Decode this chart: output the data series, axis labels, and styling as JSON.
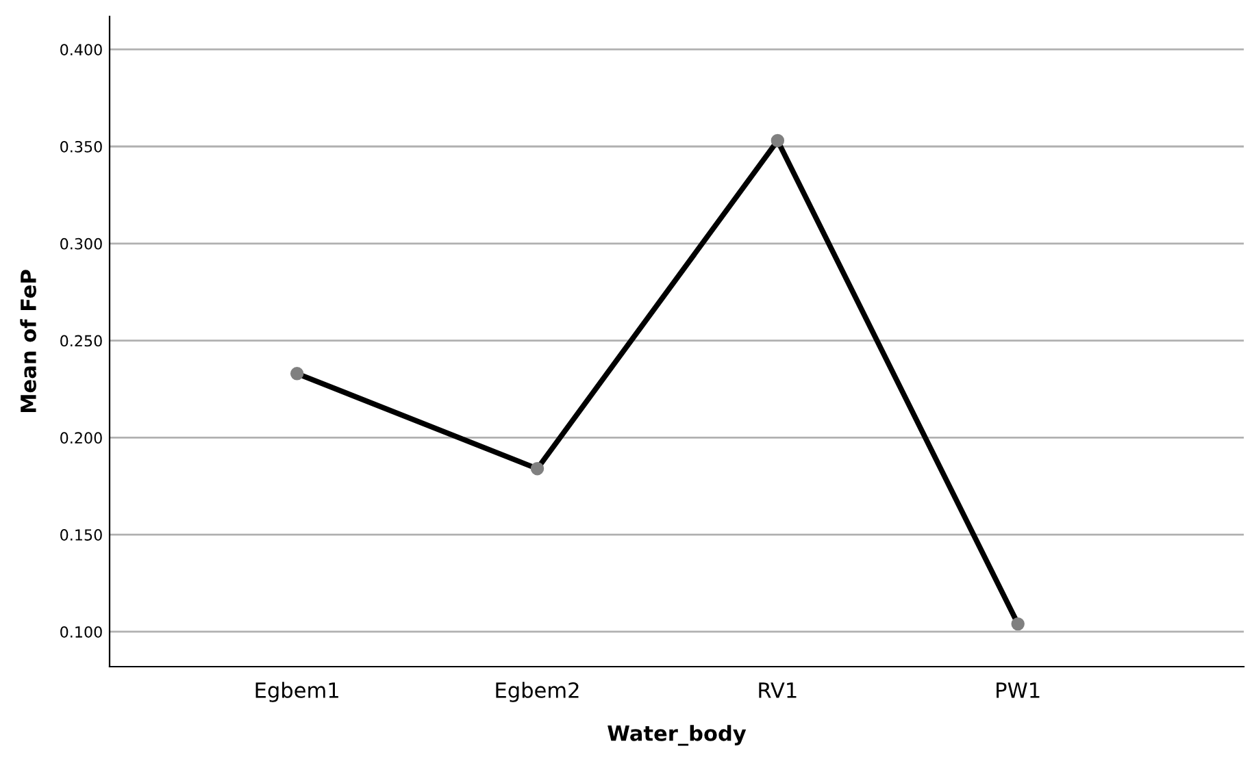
{
  "chart_data": {
    "type": "line",
    "xlabel": "Water_body",
    "ylabel": "Mean of FeP",
    "categories": [
      "Egbem1",
      "Egbem2",
      "RV1",
      "PW1"
    ],
    "series": [
      {
        "color": "#000000",
        "values": [
          0.233,
          0.184,
          0.353,
          0.104
        ]
      }
    ],
    "ylim": [
      0.082,
      0.417
    ],
    "yticks": [
      {
        "value": 0.1,
        "label": "0.100"
      },
      {
        "value": 0.15,
        "label": "0.150"
      },
      {
        "value": 0.2,
        "label": "0.200"
      },
      {
        "value": 0.25,
        "label": "0.250"
      },
      {
        "value": 0.3,
        "label": "0.300"
      },
      {
        "value": 0.35,
        "label": "0.350"
      },
      {
        "value": 0.4,
        "label": "0.400"
      }
    ],
    "grid": "y",
    "marker": "circle",
    "line_style": "solid"
  }
}
